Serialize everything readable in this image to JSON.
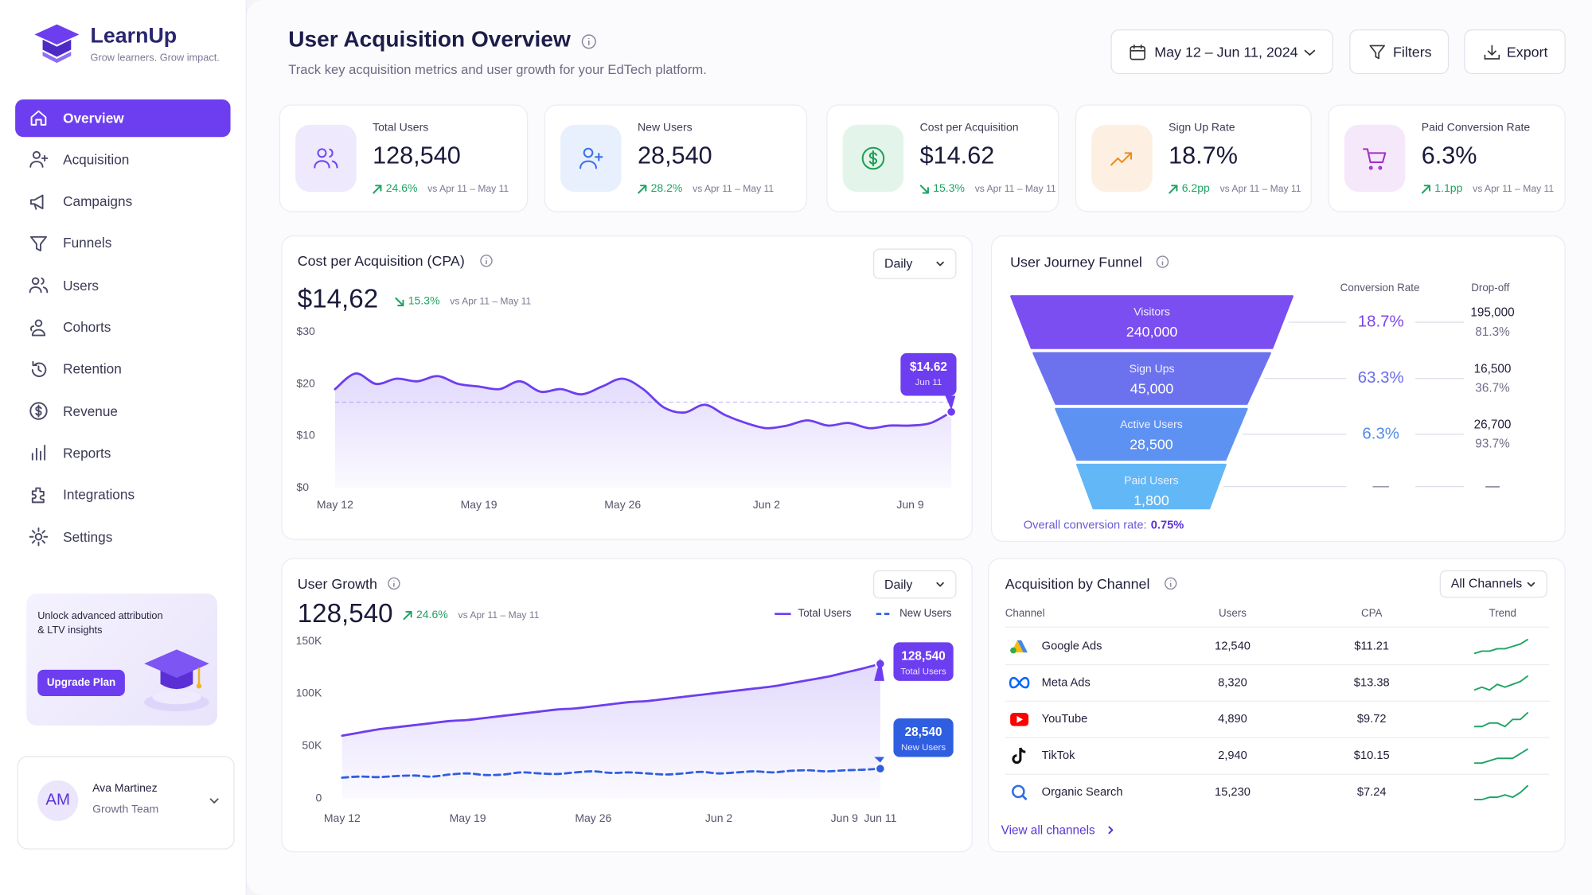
{
  "brand": {
    "name": "LearnUp",
    "tagline": "Grow learners. Grow impact."
  },
  "nav": [
    "Overview",
    "Acquisition",
    "Campaigns",
    "Funnels",
    "Users",
    "Cohorts",
    "Retention",
    "Revenue",
    "Reports",
    "Integrations",
    "Settings"
  ],
  "promo": {
    "text": "Unlock advanced attribution & LTV insights",
    "button": "Upgrade Plan"
  },
  "user": {
    "initials": "AM",
    "name": "Ava Martinez",
    "team": "Growth Team"
  },
  "header": {
    "title": "User Acquisition Overview",
    "subtitle": "Track key acquisition metrics and user growth for your EdTech platform.",
    "date_range": "May 12 – Jun 11, 2024",
    "filters": "Filters",
    "export": "Export"
  },
  "kpis": [
    {
      "label": "Total Users",
      "value": "128,540",
      "change": "24.6%",
      "direction": "up",
      "compare": "vs Apr 11 – May 11"
    },
    {
      "label": "New Users",
      "value": "28,540",
      "change": "28.2%",
      "direction": "up",
      "compare": "vs Apr 11 – May 11"
    },
    {
      "label": "Cost per Acquisition",
      "value": "$14.62",
      "change": "15.3%",
      "direction": "down",
      "compare": "vs Apr 11 – May 11"
    },
    {
      "label": "Sign Up Rate",
      "value": "18.7%",
      "change": "6.2pp",
      "direction": "up",
      "compare": "vs Apr 11 – May 11"
    },
    {
      "label": "Paid Conversion Rate",
      "value": "6.3%",
      "change": "1.1pp",
      "direction": "up",
      "compare": "vs Apr 11 – May 11"
    }
  ],
  "cpa_chart": {
    "type": "line",
    "title": "Cost per Acquisition (CPA)",
    "period": "Daily",
    "value": "$14,62",
    "change": "15.3%",
    "direction": "down",
    "compare": "vs Apr 11 – May 11",
    "categories": [
      "May 12",
      null,
      null,
      null,
      null,
      null,
      null,
      "May 19",
      null,
      null,
      null,
      null,
      null,
      null,
      "May 26",
      null,
      null,
      null,
      null,
      null,
      null,
      "Jun 2",
      null,
      null,
      null,
      null,
      null,
      null,
      "Jun 9",
      null,
      null
    ],
    "values": [
      19,
      22,
      20,
      21,
      20.5,
      21.5,
      20,
      19.5,
      19,
      20.5,
      18.5,
      19,
      18,
      19.5,
      21,
      19,
      15.5,
      14.5,
      16,
      14,
      12.5,
      11.5,
      12,
      13,
      12,
      12.5,
      11.5,
      12,
      12,
      12.5,
      14.62
    ],
    "color": "#6d3ef0",
    "ylim": [
      0,
      30
    ],
    "yticks": [
      {
        "value": 0,
        "label": "$0"
      },
      {
        "value": 10,
        "label": "$10"
      },
      {
        "value": 20,
        "label": "$20"
      },
      {
        "value": 30,
        "label": "$30"
      }
    ],
    "reference": 16.5,
    "tooltip": {
      "value": "$14.62",
      "date": "Jun 11"
    }
  },
  "funnel": {
    "title": "User Journey Funnel",
    "headers": [
      "Conversion Rate",
      "Drop-off"
    ],
    "stages": [
      {
        "name": "Visitors",
        "value": "240,000",
        "conversion": "18.7%",
        "dropoff": "195,000",
        "dropoff_pct": "81.3%"
      },
      {
        "name": "Sign Ups",
        "value": "45,000",
        "conversion": "63.3%",
        "dropoff": "16,500",
        "dropoff_pct": "36.7%"
      },
      {
        "name": "Active Users",
        "value": "28,500",
        "conversion": "6.3%",
        "dropoff": "26,700",
        "dropoff_pct": "93.7%"
      },
      {
        "name": "Paid Users",
        "value": "1,800",
        "conversion": "—",
        "dropoff": "—"
      }
    ],
    "overall_label": "Overall conversion rate:",
    "overall": "0.75%"
  },
  "growth_chart": {
    "type": "line",
    "title": "User Growth",
    "period": "Daily",
    "value": "128,540",
    "change": "24.6%",
    "direction": "up",
    "compare": "vs Apr 11 – May 11",
    "categories": [
      "May 12",
      null,
      null,
      null,
      null,
      null,
      null,
      "May 19",
      null,
      null,
      null,
      null,
      null,
      null,
      "May 26",
      null,
      null,
      null,
      null,
      null,
      null,
      "Jun 2",
      null,
      null,
      null,
      null,
      null,
      null,
      "Jun 9",
      null,
      "Jun 11"
    ],
    "series": [
      {
        "name": "Total Users",
        "color": "#6d3ef0",
        "values": [
          60000,
          63000,
          66000,
          68000,
          70000,
          72000,
          74000,
          75000,
          77000,
          79000,
          81000,
          83000,
          85000,
          86000,
          88000,
          90000,
          92000,
          93000,
          95000,
          97000,
          99000,
          101000,
          103000,
          105000,
          107000,
          110000,
          113000,
          116000,
          120000,
          124000,
          128540
        ]
      },
      {
        "name": "New Users",
        "color": "#2f5fe0",
        "dashed": true,
        "values": [
          20000,
          21000,
          20500,
          21500,
          22000,
          21000,
          23000,
          24000,
          22500,
          23000,
          25000,
          24000,
          23500,
          25000,
          26000,
          24500,
          25000,
          24000,
          23000,
          24000,
          25500,
          24000,
          25000,
          26000,
          25000,
          26500,
          27000,
          26000,
          27000,
          27500,
          28540
        ]
      }
    ],
    "ylim": [
      0,
      150000
    ],
    "yticks": [
      0,
      {
        "value": 50000,
        "label": "50K"
      },
      {
        "value": 100000,
        "label": "100K"
      },
      {
        "value": 150000,
        "label": "150K"
      }
    ],
    "tooltips": [
      "128,540",
      "28,540"
    ]
  },
  "channels": {
    "title": "Acquisition by Channel",
    "filter": "All Channels",
    "columns": [
      "Channel",
      "Users",
      "CPA",
      "Trend"
    ],
    "rows": [
      {
        "name": "Google Ads",
        "users": "12,540",
        "cpa": "$11.21",
        "trend": [
          3,
          4,
          4,
          5,
          5,
          6,
          7,
          9
        ]
      },
      {
        "name": "Meta Ads",
        "users": "8,320",
        "cpa": "$13.38",
        "trend": [
          3,
          4,
          3,
          5,
          4,
          5,
          6,
          8
        ]
      },
      {
        "name": "YouTube",
        "users": "4,890",
        "cpa": "$9.72",
        "trend": [
          4,
          4,
          5,
          5,
          4,
          6,
          6,
          8
        ]
      },
      {
        "name": "TikTok",
        "users": "2,940",
        "cpa": "$10.15",
        "trend": [
          3,
          3,
          4,
          5,
          5,
          5,
          7,
          9
        ]
      },
      {
        "name": "Organic Search",
        "users": "15,230",
        "cpa": "$7.24",
        "trend": [
          3,
          3,
          4,
          4,
          5,
          4,
          6,
          9
        ]
      }
    ],
    "link": "View all channels"
  }
}
